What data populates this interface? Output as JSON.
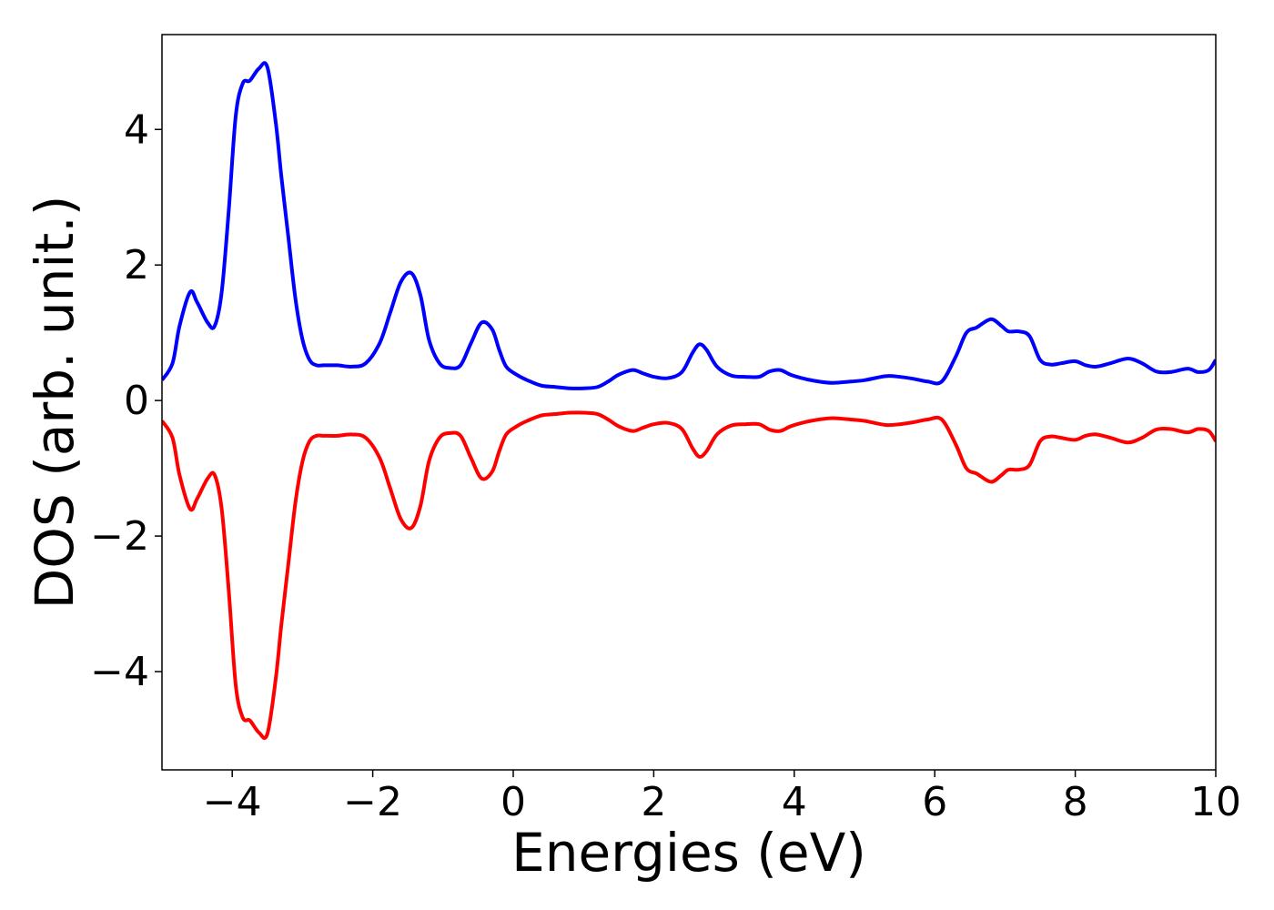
{
  "chart_data": {
    "type": "line",
    "xlabel": "Energies (eV)",
    "ylabel": "DOS (arb. unit.)",
    "xlim": [
      -5,
      10
    ],
    "ylim": [
      -5.45,
      5.4
    ],
    "xticks": [
      -4,
      -2,
      0,
      2,
      4,
      6,
      8,
      10
    ],
    "yticks": [
      -4,
      -2,
      0,
      2,
      4
    ],
    "xtick_labels": [
      "−4",
      "−2",
      "0",
      "2",
      "4",
      "6",
      "8",
      "10"
    ],
    "ytick_labels": [
      "−4",
      "−2",
      "0",
      "2",
      "4"
    ],
    "grid": false,
    "legend": false,
    "series": [
      {
        "color": "#0000ff",
        "x": [
          -5,
          -4.85,
          -4.75,
          -4.6,
          -4.5,
          -4.35,
          -4.25,
          -4.15,
          -4.05,
          -3.95,
          -3.85,
          -3.75,
          -3.62,
          -3.5,
          -3.38,
          -3.3,
          -3.2,
          -3.1,
          -3.0,
          -2.9,
          -2.8,
          -2.7,
          -2.5,
          -2.3,
          -2.1,
          -1.9,
          -1.75,
          -1.6,
          -1.45,
          -1.32,
          -1.2,
          -1.05,
          -0.9,
          -0.75,
          -0.6,
          -0.45,
          -0.3,
          -0.2,
          -0.1,
          0.05,
          0.2,
          0.4,
          0.6,
          0.8,
          1.0,
          1.2,
          1.35,
          1.5,
          1.7,
          1.85,
          2.0,
          2.2,
          2.4,
          2.55,
          2.65,
          2.75,
          2.9,
          3.1,
          3.3,
          3.5,
          3.65,
          3.8,
          3.95,
          4.15,
          4.35,
          4.55,
          4.8,
          5.0,
          5.3,
          5.5,
          5.7,
          5.9,
          6.1,
          6.3,
          6.45,
          6.6,
          6.8,
          6.95,
          7.05,
          7.2,
          7.35,
          7.5,
          7.65,
          7.8,
          8.0,
          8.15,
          8.3,
          8.5,
          8.75,
          8.95,
          9.15,
          9.35,
          9.6,
          9.75,
          9.9,
          10.0
        ],
        "y": [
          0.3,
          0.55,
          1.1,
          1.6,
          1.45,
          1.15,
          1.1,
          1.6,
          2.8,
          4.2,
          4.68,
          4.72,
          4.9,
          4.92,
          4.1,
          3.3,
          2.4,
          1.5,
          0.9,
          0.6,
          0.52,
          0.52,
          0.52,
          0.5,
          0.55,
          0.85,
          1.3,
          1.75,
          1.88,
          1.55,
          0.9,
          0.55,
          0.48,
          0.52,
          0.85,
          1.15,
          1.05,
          0.75,
          0.5,
          0.38,
          0.3,
          0.22,
          0.2,
          0.18,
          0.18,
          0.2,
          0.28,
          0.38,
          0.45,
          0.4,
          0.35,
          0.33,
          0.42,
          0.7,
          0.83,
          0.75,
          0.5,
          0.37,
          0.35,
          0.35,
          0.43,
          0.45,
          0.38,
          0.32,
          0.28,
          0.26,
          0.28,
          0.3,
          0.36,
          0.35,
          0.32,
          0.28,
          0.28,
          0.65,
          1.0,
          1.08,
          1.2,
          1.1,
          1.02,
          1.02,
          0.95,
          0.6,
          0.53,
          0.55,
          0.58,
          0.52,
          0.5,
          0.55,
          0.62,
          0.55,
          0.43,
          0.42,
          0.47,
          0.42,
          0.45,
          0.6
        ]
      },
      {
        "color": "#ff0000",
        "x": [
          -5,
          -4.85,
          -4.75,
          -4.6,
          -4.5,
          -4.35,
          -4.25,
          -4.15,
          -4.05,
          -3.95,
          -3.85,
          -3.75,
          -3.62,
          -3.5,
          -3.38,
          -3.3,
          -3.2,
          -3.1,
          -3.0,
          -2.9,
          -2.8,
          -2.7,
          -2.5,
          -2.3,
          -2.1,
          -1.9,
          -1.75,
          -1.6,
          -1.45,
          -1.32,
          -1.2,
          -1.05,
          -0.9,
          -0.75,
          -0.6,
          -0.45,
          -0.3,
          -0.2,
          -0.1,
          0.05,
          0.2,
          0.4,
          0.6,
          0.8,
          1.0,
          1.2,
          1.35,
          1.5,
          1.7,
          1.85,
          2.0,
          2.2,
          2.4,
          2.55,
          2.65,
          2.75,
          2.9,
          3.1,
          3.3,
          3.5,
          3.65,
          3.8,
          3.95,
          4.15,
          4.35,
          4.55,
          4.8,
          5.0,
          5.3,
          5.5,
          5.7,
          5.9,
          6.1,
          6.3,
          6.45,
          6.6,
          6.8,
          6.95,
          7.05,
          7.2,
          7.35,
          7.5,
          7.65,
          7.8,
          8.0,
          8.15,
          8.3,
          8.5,
          8.75,
          8.95,
          9.15,
          9.35,
          9.6,
          9.75,
          9.9,
          10.0
        ],
        "y": [
          -0.3,
          -0.55,
          -1.1,
          -1.6,
          -1.45,
          -1.15,
          -1.1,
          -1.6,
          -2.8,
          -4.2,
          -4.68,
          -4.72,
          -4.9,
          -4.92,
          -4.1,
          -3.3,
          -2.4,
          -1.5,
          -0.9,
          -0.6,
          -0.52,
          -0.52,
          -0.52,
          -0.5,
          -0.55,
          -0.85,
          -1.3,
          -1.75,
          -1.88,
          -1.55,
          -0.9,
          -0.55,
          -0.48,
          -0.52,
          -0.85,
          -1.15,
          -1.05,
          -0.75,
          -0.5,
          -0.38,
          -0.3,
          -0.22,
          -0.2,
          -0.18,
          -0.18,
          -0.2,
          -0.28,
          -0.38,
          -0.45,
          -0.4,
          -0.35,
          -0.33,
          -0.42,
          -0.7,
          -0.83,
          -0.75,
          -0.5,
          -0.37,
          -0.35,
          -0.35,
          -0.43,
          -0.45,
          -0.38,
          -0.32,
          -0.28,
          -0.26,
          -0.28,
          -0.3,
          -0.36,
          -0.35,
          -0.32,
          -0.28,
          -0.28,
          -0.65,
          -1.0,
          -1.08,
          -1.2,
          -1.1,
          -1.02,
          -1.02,
          -0.95,
          -0.6,
          -0.53,
          -0.55,
          -0.58,
          -0.52,
          -0.5,
          -0.55,
          -0.62,
          -0.55,
          -0.43,
          -0.42,
          -0.47,
          -0.42,
          -0.45,
          -0.6
        ]
      }
    ]
  }
}
